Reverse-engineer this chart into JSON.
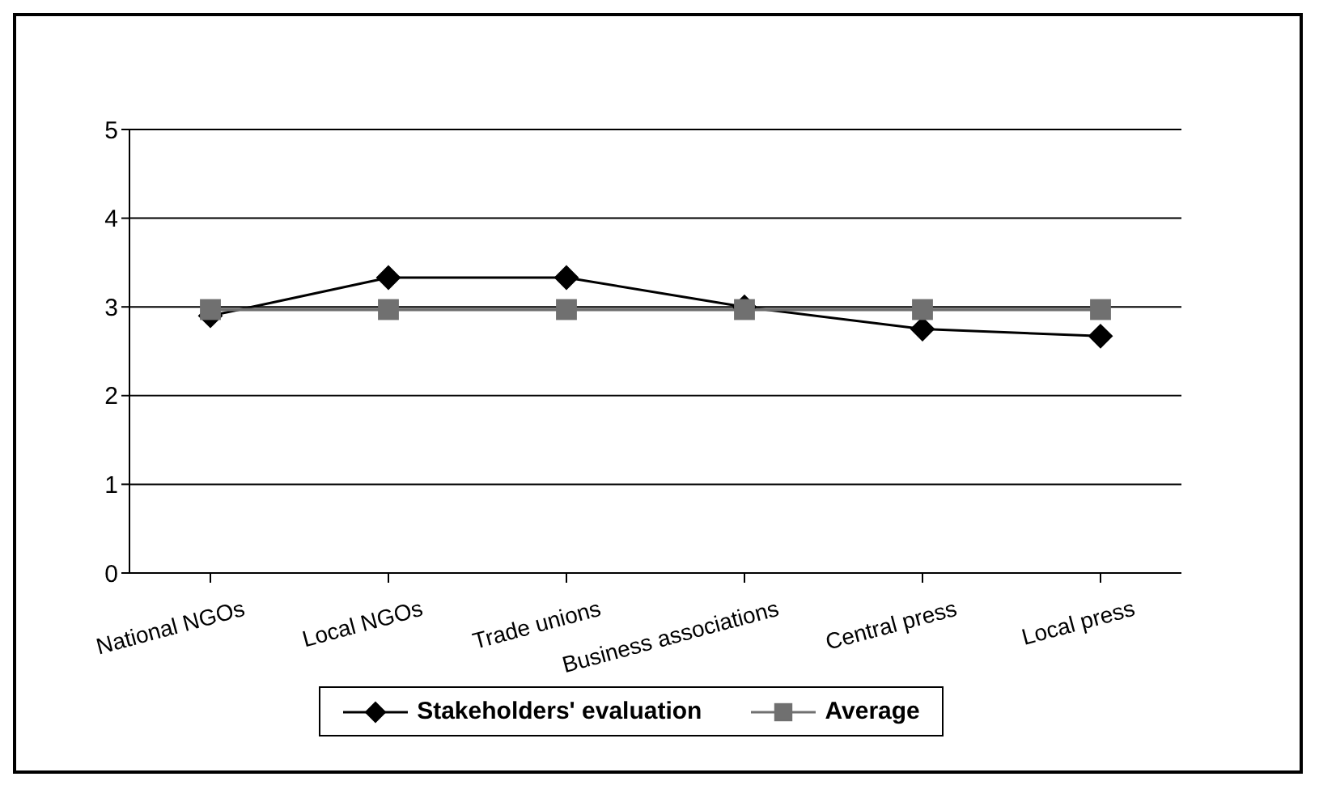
{
  "chart_data": {
    "type": "line",
    "categories": [
      "National NGOs",
      "Local NGOs",
      "Trade unions",
      "Business associations",
      "Central press",
      "Local press"
    ],
    "series": [
      {
        "name": "Stakeholders' evaluation",
        "color": "#000000",
        "marker": "diamond",
        "values": [
          2.9,
          3.33,
          3.33,
          3.0,
          2.75,
          2.67
        ]
      },
      {
        "name": "Average",
        "color": "#707070",
        "marker": "square",
        "values": [
          2.97,
          2.97,
          2.97,
          2.97,
          2.97,
          2.97
        ]
      }
    ],
    "ylim": [
      0,
      5
    ],
    "yticks": [
      0,
      1,
      2,
      3,
      4,
      5
    ],
    "grid": "y",
    "legend": "bottom"
  }
}
